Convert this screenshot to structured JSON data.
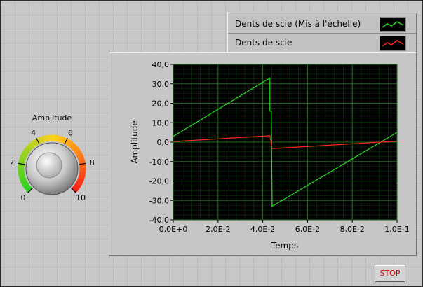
{
  "legend": {
    "items": [
      {
        "label": "Dents de scie (Mis à l'échelle)",
        "color": "#22e01c"
      },
      {
        "label": "Dents de scie",
        "color": "#ff2a1a"
      }
    ]
  },
  "graph": {
    "xlabel": "Temps",
    "ylabel": "Amplitude"
  },
  "knob": {
    "label": "Amplitude",
    "scale_labels": [
      "0",
      "2",
      "4",
      "6",
      "8",
      "10"
    ],
    "range": [
      0,
      10
    ]
  },
  "stop_button": {
    "label": "STOP"
  },
  "colors": {
    "plot_background": "#000000",
    "grid": "#1f6b1f",
    "scaled_series": "#22e01c",
    "raw_series": "#ff2a1a",
    "stop_text": "#d20000"
  },
  "chart_data": {
    "type": "line",
    "xlabel": "Temps",
    "ylabel": "Amplitude",
    "xlim": [
      0,
      0.1
    ],
    "ylim": [
      -40,
      40
    ],
    "x_ticks": [
      "0,0E+0",
      "2,0E-2",
      "4,0E-2",
      "6,0E-2",
      "8,0E-2",
      "1,0E-1"
    ],
    "y_ticks": [
      "40,0",
      "30,0",
      "20,0",
      "10,0",
      "0,0",
      "-10,0",
      "-20,0",
      "-30,0",
      "-40,0"
    ],
    "grid": true,
    "series": [
      {
        "name": "Dents de scie (Mis à l'échelle)",
        "color": "#22e01c",
        "points": [
          [
            0,
            3
          ],
          [
            0.0432,
            33
          ],
          [
            0.0432,
            16
          ],
          [
            0.0438,
            16
          ],
          [
            0.0442,
            -33
          ],
          [
            0.1,
            5
          ]
        ]
      },
      {
        "name": "Dents de scie",
        "color": "#ff2a1a",
        "points": [
          [
            0,
            0.3
          ],
          [
            0.0432,
            3.3
          ],
          [
            0.0442,
            -3.3
          ],
          [
            0.1,
            0.5
          ]
        ]
      }
    ]
  }
}
